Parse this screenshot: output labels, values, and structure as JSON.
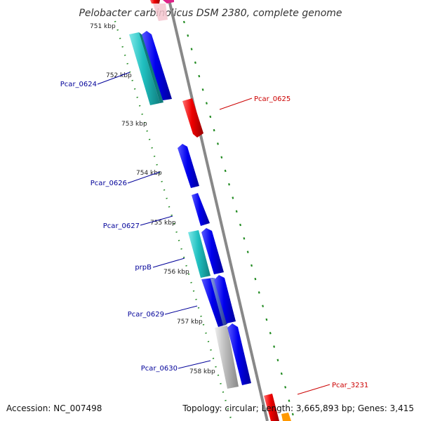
{
  "title": "Pelobacter carbinolicus DSM 2380, complete genome",
  "footer": {
    "accession": "Accession: NC_007498",
    "summary": "Topology: circular; Length: 3,665,893 bp; Genes: 3,415"
  },
  "ticks": [
    {
      "label": "751 kbp",
      "pos": 751
    },
    {
      "label": "752 kbp",
      "pos": 752
    },
    {
      "label": "753 kbp",
      "pos": 753
    },
    {
      "label": "754 kbp",
      "pos": 754
    },
    {
      "label": "755 kbp",
      "pos": 755
    },
    {
      "label": "756 kbp",
      "pos": 756
    },
    {
      "label": "757 kbp",
      "pos": 757
    },
    {
      "label": "758 kbp",
      "pos": 758
    }
  ],
  "gene_labels": [
    {
      "name": "Pcar_0624",
      "side": "left",
      "color": "#000099"
    },
    {
      "name": "Pcar_0625",
      "side": "right",
      "color": "#cc0000"
    },
    {
      "name": "Pcar_0626",
      "side": "left",
      "color": "#000099"
    },
    {
      "name": "Pcar_0627",
      "side": "left",
      "color": "#000099"
    },
    {
      "name": "prpB",
      "side": "left",
      "color": "#000099"
    },
    {
      "name": "Pcar_0629",
      "side": "left",
      "color": "#000099"
    },
    {
      "name": "Pcar_0630",
      "side": "left",
      "color": "#000099"
    },
    {
      "name": "Pcar_3231",
      "side": "right",
      "color": "#cc0000"
    }
  ],
  "colors": {
    "backbone": "#888888",
    "gc_skew": "#228b22",
    "forward_cds": "#0000ee",
    "rna": "#20c0c0",
    "reverse_cds": "#ee0000",
    "pseudo": "#bbbbbb"
  }
}
